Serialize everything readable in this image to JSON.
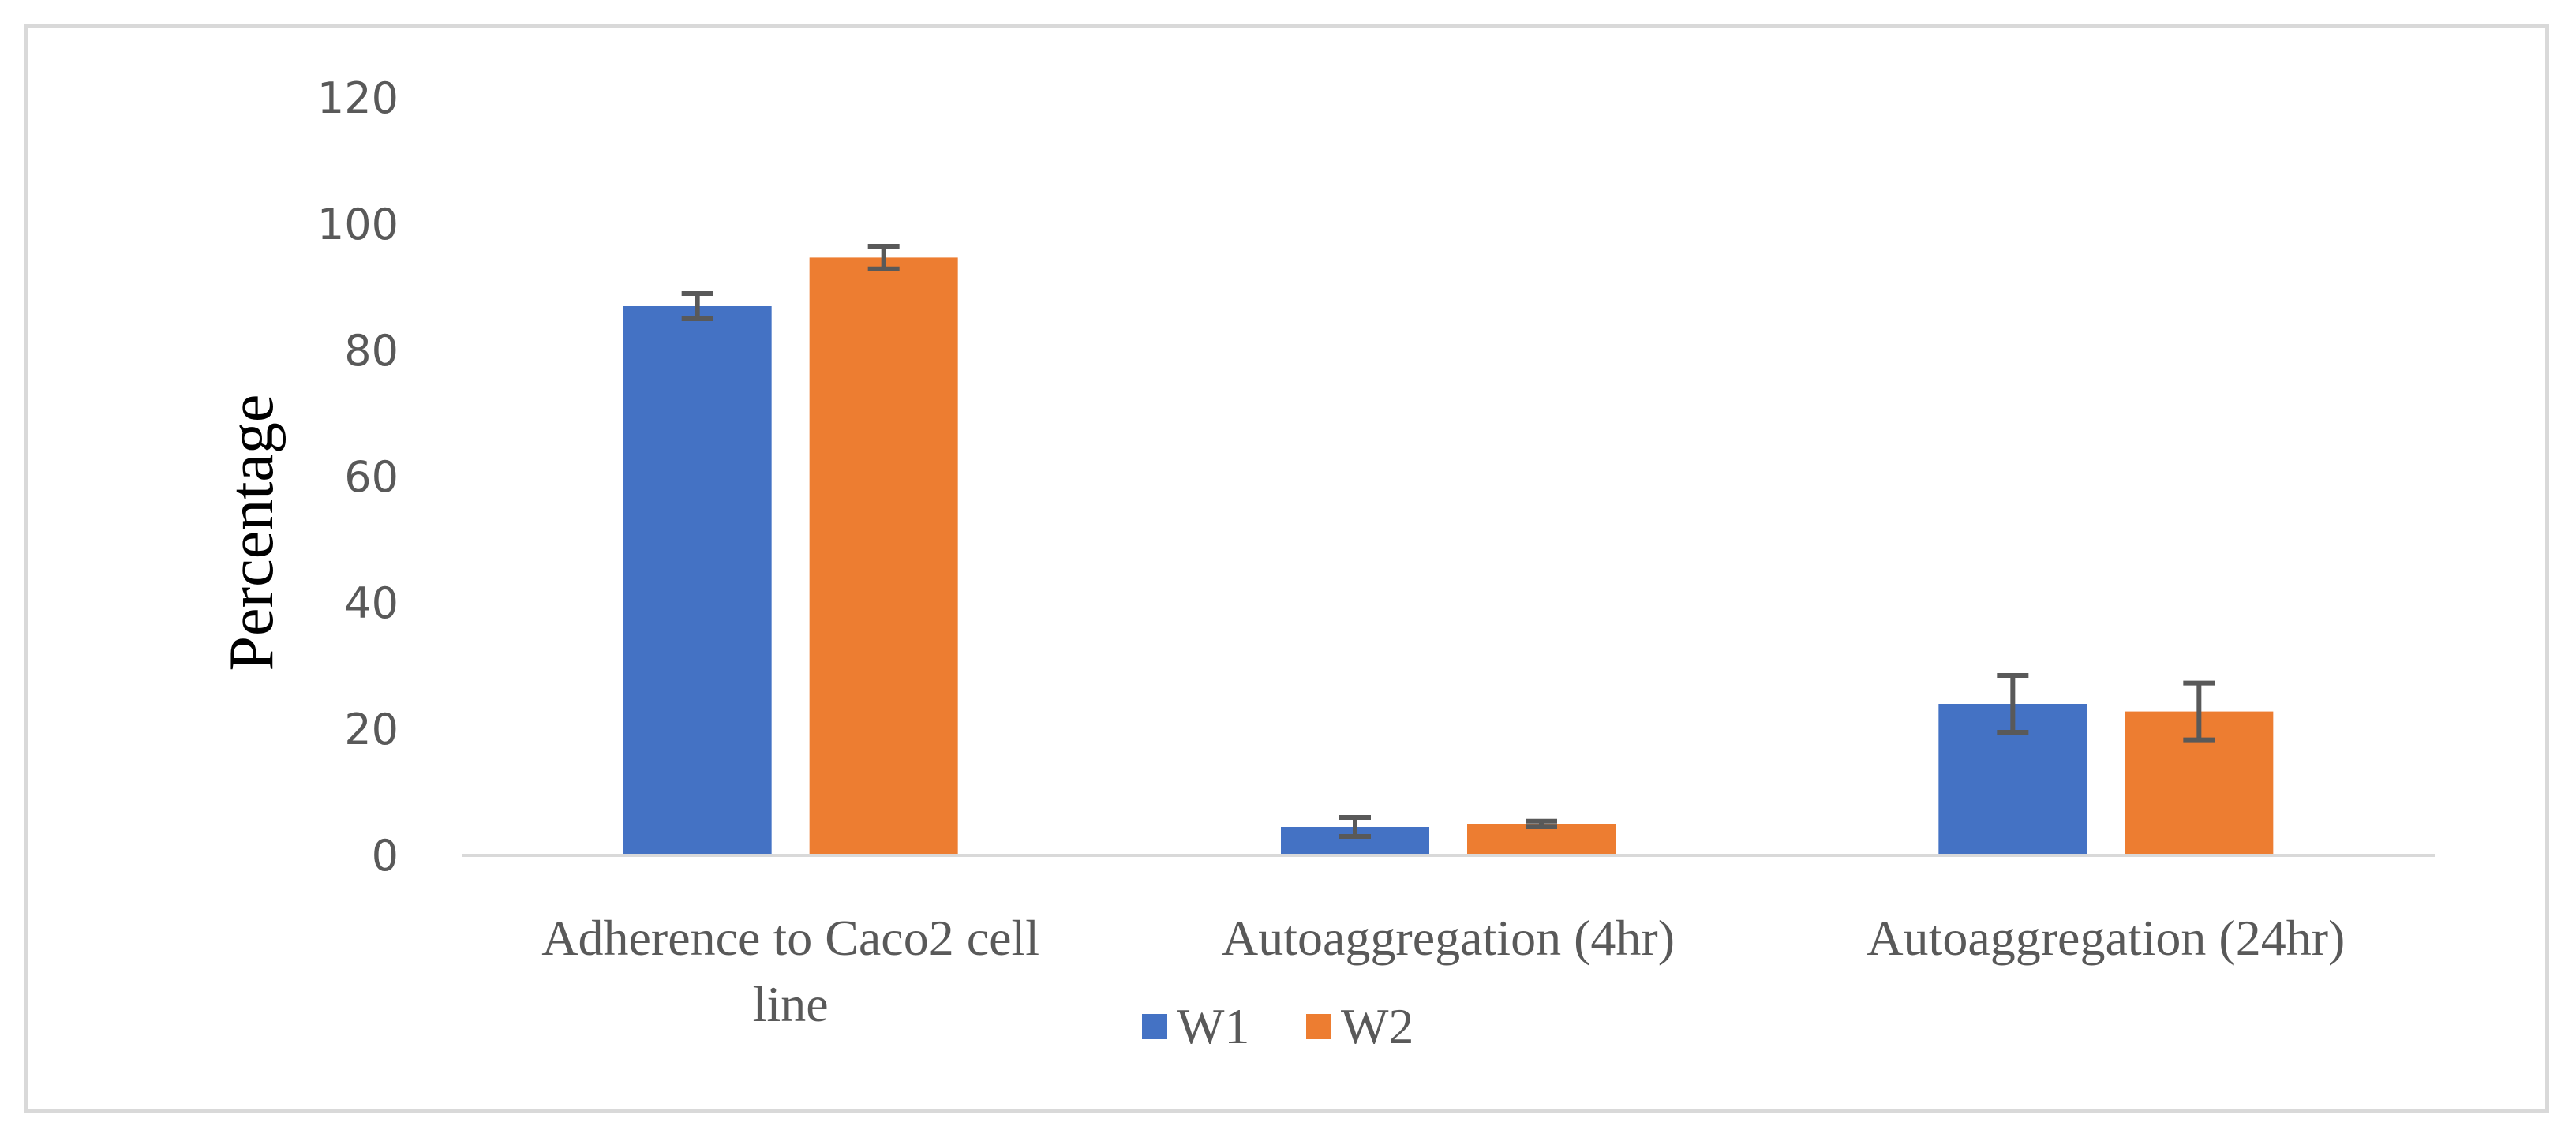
{
  "chart_data": {
    "type": "bar",
    "title": "",
    "xlabel": "",
    "ylabel": "Percentage",
    "ylim": [
      0,
      120
    ],
    "yticks": [
      0,
      20,
      40,
      60,
      80,
      100,
      120
    ],
    "grid": false,
    "legend_position": "bottom",
    "categories": [
      [
        "Adherence to Caco2 cell",
        "line"
      ],
      [
        "Autoaggregation (4hr)"
      ],
      [
        "Autoaggregation (24hr)"
      ]
    ],
    "series": [
      {
        "name": "W1",
        "color": "#4472C4",
        "values": [
          87,
          4.5,
          24
        ],
        "errors": [
          2.0,
          1.5,
          4.5
        ]
      },
      {
        "name": "W2",
        "color": "#ED7D31",
        "values": [
          94.7,
          5,
          22.8
        ],
        "errors": [
          1.8,
          0.4,
          4.5
        ]
      }
    ]
  }
}
